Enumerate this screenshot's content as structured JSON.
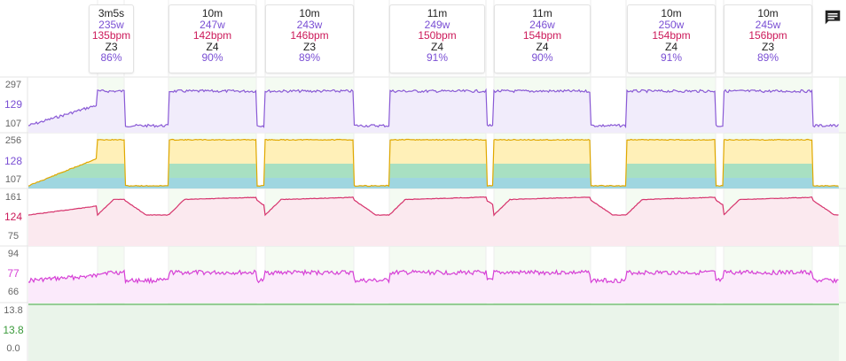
{
  "intervals": [
    {
      "duration": "3m5s",
      "power": "235w",
      "hr": "135bpm",
      "zone": "Z3",
      "pct": "86%"
    },
    {
      "duration": "10m",
      "power": "247w",
      "hr": "142bpm",
      "zone": "Z4",
      "pct": "90%"
    },
    {
      "duration": "10m",
      "power": "243w",
      "hr": "146bpm",
      "zone": "Z3",
      "pct": "89%"
    },
    {
      "duration": "11m",
      "power": "249w",
      "hr": "150bpm",
      "zone": "Z4",
      "pct": "91%"
    },
    {
      "duration": "11m",
      "power": "246w",
      "hr": "154bpm",
      "zone": "Z4",
      "pct": "90%"
    },
    {
      "duration": "10m",
      "power": "250w",
      "hr": "154bpm",
      "zone": "Z4",
      "pct": "91%"
    },
    {
      "duration": "10m",
      "power": "245w",
      "hr": "156bpm",
      "zone": "Z3",
      "pct": "89%"
    }
  ],
  "panels": {
    "power": {
      "max": "297",
      "avg": "129",
      "min": "107",
      "avg_color": "#7a4fd4"
    },
    "wbal": {
      "max": "256",
      "avg": "128",
      "min": "107",
      "avg_color": "#7a4fd4"
    },
    "hr": {
      "max": "161",
      "avg": "124",
      "min": "75",
      "avg_color": "#cc1a5a"
    },
    "cadence": {
      "max": "94",
      "avg": "77",
      "min": "66",
      "avg_color": "#d63fd6"
    },
    "speed": {
      "max": "13.8",
      "avg": "13.8",
      "min": "0.0",
      "avg_color": "#3a9a3a"
    }
  },
  "toolbar": {
    "comment_icon": "comment-icon"
  }
}
